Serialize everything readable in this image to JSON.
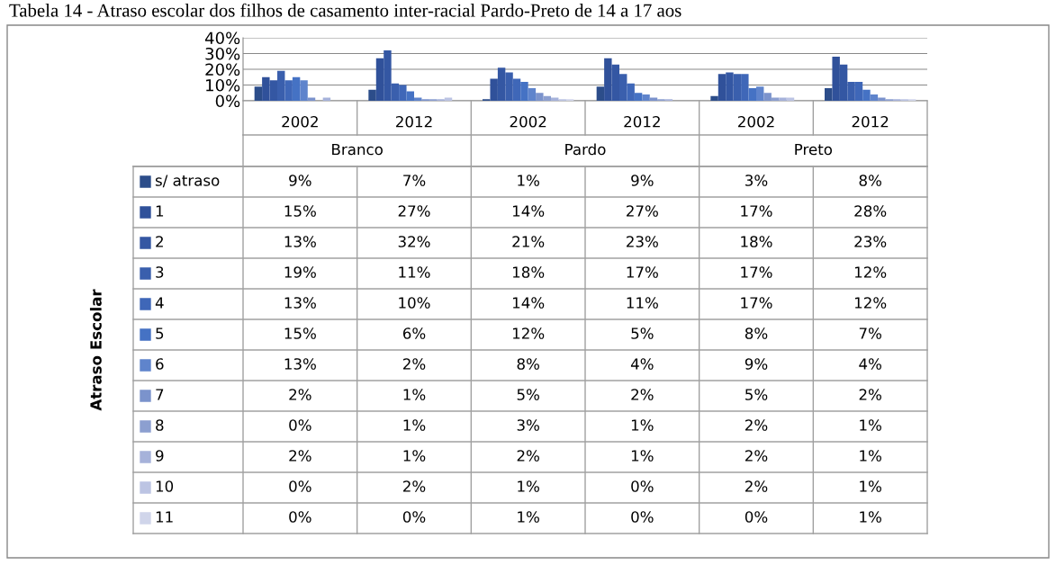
{
  "chart_data": {
    "type": "bar",
    "title": "Tabela 14 - Atraso escolar dos filhos de casamento inter-racial Pardo-Preto de 14 a 17 aos",
    "categories": [
      "2002",
      "2012",
      "2002",
      "2012",
      "2002",
      "2012"
    ],
    "annotations": [
      "Branco",
      "Pardo",
      "Preto"
    ],
    "legend_title": "Atraso Escolar",
    "ylim": [
      0,
      40
    ],
    "yticks": [
      {
        "value": 0,
        "label": "0%"
      },
      {
        "value": 10,
        "label": "10%"
      },
      {
        "value": 20,
        "label": "20%"
      },
      {
        "value": 30,
        "label": "30%"
      },
      {
        "value": 40,
        "label": "40%"
      }
    ],
    "grid": "y",
    "legend": "bottom left",
    "series": [
      {
        "name": "s/ atraso",
        "color": "#2c4d8a",
        "values": [
          9,
          7,
          1,
          9,
          3,
          8
        ],
        "value_labels": [
          "9%",
          "7%",
          "1%",
          "9%",
          "3%",
          "8%"
        ]
      },
      {
        "name": "1",
        "color": "#30519a",
        "values": [
          15,
          27,
          14,
          27,
          17,
          28
        ],
        "value_labels": [
          "15%",
          "27%",
          "14%",
          "27%",
          "17%",
          "28%"
        ]
      },
      {
        "name": "2",
        "color": "#3457a3",
        "values": [
          13,
          32,
          21,
          23,
          18,
          23
        ],
        "value_labels": [
          "13%",
          "32%",
          "21%",
          "23%",
          "18%",
          "23%"
        ]
      },
      {
        "name": "3",
        "color": "#3a5fad",
        "values": [
          19,
          11,
          18,
          17,
          17,
          12
        ],
        "value_labels": [
          "19%",
          "11%",
          "18%",
          "17%",
          "17%",
          "12%"
        ]
      },
      {
        "name": "4",
        "color": "#3f67b8",
        "values": [
          13,
          10,
          14,
          11,
          17,
          12
        ],
        "value_labels": [
          "13%",
          "10%",
          "14%",
          "11%",
          "17%",
          "12%"
        ]
      },
      {
        "name": "5",
        "color": "#4572c4",
        "values": [
          15,
          6,
          12,
          5,
          8,
          7
        ],
        "value_labels": [
          "15%",
          "6%",
          "12%",
          "5%",
          "8%",
          "7%"
        ]
      },
      {
        "name": "6",
        "color": "#5f84cc",
        "values": [
          13,
          2,
          8,
          4,
          9,
          4
        ],
        "value_labels": [
          "13%",
          "2%",
          "8%",
          "4%",
          "9%",
          "4%"
        ]
      },
      {
        "name": "7",
        "color": "#7b93cc",
        "values": [
          2,
          1,
          5,
          2,
          5,
          2
        ],
        "value_labels": [
          "2%",
          "1%",
          "5%",
          "2%",
          "5%",
          "2%"
        ]
      },
      {
        "name": "8",
        "color": "#8c9fd0",
        "values": [
          0,
          1,
          3,
          1,
          2,
          1
        ],
        "value_labels": [
          "0%",
          "1%",
          "3%",
          "1%",
          "2%",
          "1%"
        ]
      },
      {
        "name": "9",
        "color": "#a6b2da",
        "values": [
          2,
          1,
          2,
          1,
          2,
          1
        ],
        "value_labels": [
          "2%",
          "1%",
          "2%",
          "1%",
          "2%",
          "1%"
        ]
      },
      {
        "name": "10",
        "color": "#bcc4e3",
        "values": [
          0,
          2,
          1,
          0,
          2,
          1
        ],
        "value_labels": [
          "0%",
          "2%",
          "1%",
          "0%",
          "2%",
          "1%"
        ]
      },
      {
        "name": "11",
        "color": "#d0d5ea",
        "values": [
          0,
          0,
          1,
          0,
          0,
          1
        ],
        "value_labels": [
          "0%",
          "0%",
          "1%",
          "0%",
          "0%",
          "1%"
        ]
      }
    ]
  }
}
